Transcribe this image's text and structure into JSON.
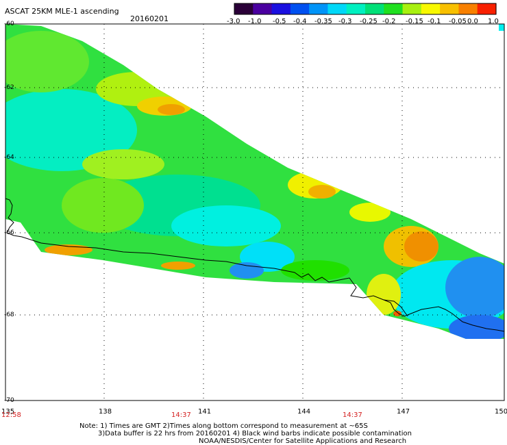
{
  "header": {
    "title": "ASCAT 25KM MLE-1 ascending",
    "date": "20160201"
  },
  "colorbar": {
    "labels": [
      "-3.0",
      "-1.0",
      "-0.5",
      "-0.4",
      "-0.35",
      "-0.3",
      "-0.25",
      "-0.2",
      "-0.15",
      "-0.1",
      "-0.05",
      "0.0",
      "1.0"
    ],
    "colors": [
      "#2a0038",
      "#4a00a0",
      "#1a10e0",
      "#0050f0",
      "#0094f8",
      "#00d8f8",
      "#00f0c0",
      "#00e078",
      "#20e020",
      "#a8f010",
      "#f8f800",
      "#f8c000",
      "#f88000",
      "#f82000"
    ]
  },
  "axes": {
    "x_ticks": [
      "135",
      "138",
      "141",
      "144",
      "147",
      "150"
    ],
    "y_ticks": [
      "-60",
      "-62",
      "-64",
      "-66",
      "-68",
      "-70"
    ],
    "times": [
      "12:58",
      "14:37",
      "14:37"
    ]
  },
  "footer": {
    "line1": "Note: 1) Times are GMT 2)Times along bottom correspond to measurement at ~65S",
    "line2": "3)Data buffer is 22 hrs from 20160201 4) Black wind barbs indicate possible contamination",
    "line3": "NOAA/NESDIS/Center for Satellite Applications and Research"
  },
  "map_colors": {
    "cyan": "#00f0f0",
    "blue": "#2090f0",
    "green": "#00e060",
    "yellow": "#f0f000",
    "orange": "#f0a000"
  }
}
